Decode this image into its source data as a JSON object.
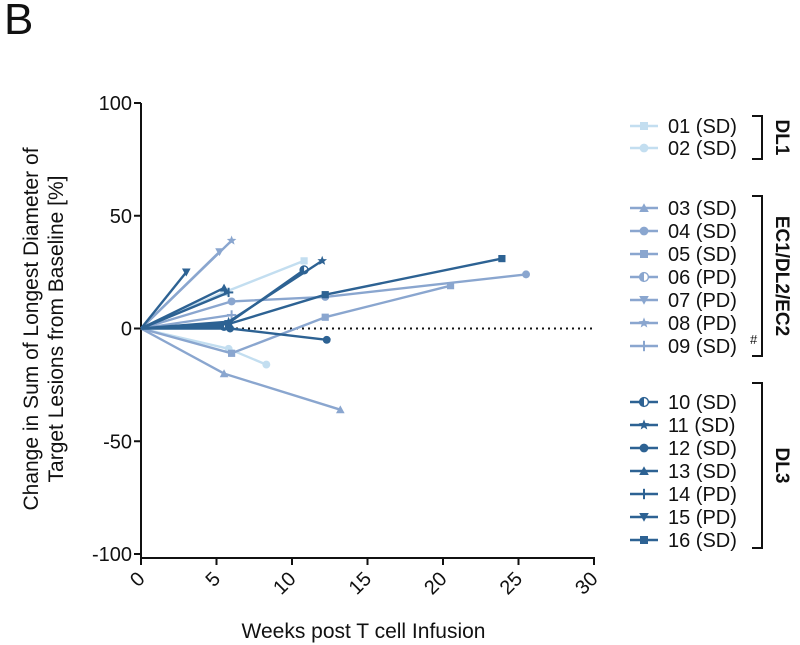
{
  "panel_label": "B",
  "chart_data": {
    "type": "line",
    "title": "",
    "xlabel": "Weeks post T cell Infusion",
    "ylabel_lines": [
      "Change in Sum of Longest Diameter of",
      "Target Lesions from Baseline [%]"
    ],
    "xlim": [
      0,
      30
    ],
    "ylim": [
      -100,
      100
    ],
    "xticks": [
      "0",
      "5",
      "10",
      "15",
      "20",
      "25",
      "30"
    ],
    "yticks": [
      "-100",
      "-50",
      "0",
      "50",
      "100"
    ],
    "reference_line": {
      "y": 0,
      "style": "dotted"
    },
    "grid": false,
    "legend_position": "right",
    "legend_note": "#",
    "groups": [
      {
        "label": "DL1",
        "series": [
          "01 (SD)",
          "02 (SD)"
        ]
      },
      {
        "label": "EC1/DL2/EC2",
        "series": [
          "03 (SD)",
          "04 (SD)",
          "05 (SD)",
          "06 (PD)",
          "07 (PD)",
          "08 (PD)",
          "09 (SD)"
        ]
      },
      {
        "label": "DL3",
        "series": [
          "10 (SD)",
          "11 (SD)",
          "12 (SD)",
          "13 (SD)",
          "14 (PD)",
          "15 (PD)",
          "16 (SD)"
        ]
      }
    ],
    "series": [
      {
        "name": "01 (SD)",
        "color": "#c3def0",
        "marker": "square",
        "x": [
          0,
          5.5,
          10.8
        ],
        "y": [
          0,
          16,
          30
        ]
      },
      {
        "name": "02 (SD)",
        "color": "#c3def0",
        "marker": "circle",
        "x": [
          0,
          5.8,
          8.3
        ],
        "y": [
          0,
          -9,
          -16
        ]
      },
      {
        "name": "03 (SD)",
        "color": "#8aa6cf",
        "marker": "triangle",
        "x": [
          0,
          5.5,
          13.2
        ],
        "y": [
          0,
          -20,
          -36
        ]
      },
      {
        "name": "04 (SD)",
        "color": "#8aa6cf",
        "marker": "circle",
        "x": [
          0,
          6.0,
          12.2,
          25.5
        ],
        "y": [
          0,
          12,
          14,
          24
        ]
      },
      {
        "name": "05 (SD)",
        "color": "#8aa6cf",
        "marker": "square",
        "x": [
          0,
          6.0,
          12.2,
          20.5
        ],
        "y": [
          0,
          -11,
          5,
          19
        ]
      },
      {
        "name": "06 (PD)",
        "color": "#8aa6cf",
        "marker": "half-circle",
        "x": [
          0,
          5.5
        ],
        "y": [
          0,
          1
        ]
      },
      {
        "name": "07 (PD)",
        "color": "#8aa6cf",
        "marker": "triangle-down",
        "x": [
          0,
          5.2
        ],
        "y": [
          0,
          34
        ]
      },
      {
        "name": "08 (PD)",
        "color": "#8aa6cf",
        "marker": "star",
        "x": [
          0,
          6.0
        ],
        "y": [
          0,
          39
        ]
      },
      {
        "name": "09 (SD)",
        "color": "#8aa6cf",
        "marker": "plus",
        "x": [
          0,
          6.0
        ],
        "y": [
          0,
          6
        ]
      },
      {
        "name": "10 (SD)",
        "color": "#2d6293",
        "marker": "half-circle",
        "x": [
          0,
          5.5,
          10.8
        ],
        "y": [
          0,
          1,
          26
        ]
      },
      {
        "name": "11 (SD)",
        "color": "#2d6293",
        "marker": "star",
        "x": [
          0,
          5.8,
          12.0
        ],
        "y": [
          0,
          3,
          30
        ]
      },
      {
        "name": "12 (SD)",
        "color": "#2d6293",
        "marker": "circle",
        "x": [
          0,
          5.9,
          12.3
        ],
        "y": [
          0,
          0,
          -5
        ]
      },
      {
        "name": "13 (SD)",
        "color": "#2d6293",
        "marker": "triangle",
        "x": [
          0,
          5.5
        ],
        "y": [
          0,
          18
        ]
      },
      {
        "name": "14 (PD)",
        "color": "#2d6293",
        "marker": "plus",
        "x": [
          0,
          5.8
        ],
        "y": [
          0,
          16
        ]
      },
      {
        "name": "15 (PD)",
        "color": "#2d6293",
        "marker": "triangle-down",
        "x": [
          0,
          3.0
        ],
        "y": [
          0,
          25
        ]
      },
      {
        "name": "16 (SD)",
        "color": "#2d6293",
        "marker": "square",
        "x": [
          0,
          5.8,
          12.2,
          23.9
        ],
        "y": [
          0,
          2,
          15,
          31
        ]
      }
    ]
  }
}
